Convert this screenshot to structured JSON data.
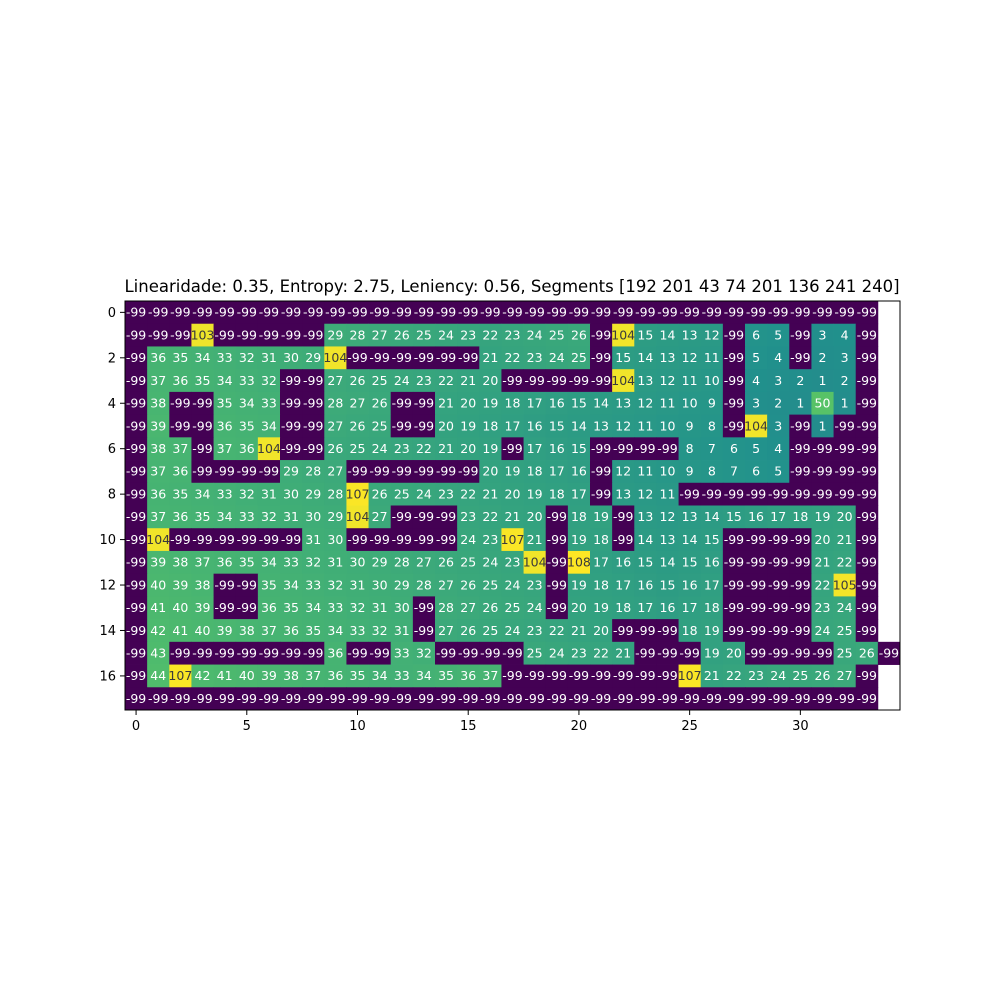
{
  "chart_data": {
    "type": "heatmap",
    "title": "Linearidade: 0.35, Entropy: 2.75, Leniency: 0.56, Segments [192 201  43  74 201 136 241 240]",
    "xlabel": "",
    "ylabel": "",
    "x_ticks": [
      "0",
      "5",
      "10",
      "15",
      "20",
      "25",
      "30"
    ],
    "y_ticks": [
      "0",
      "2",
      "4",
      "6",
      "8",
      "10",
      "12",
      "14",
      "16"
    ],
    "vmin": -99,
    "vmax": 108,
    "colormap": "viridis",
    "grid": false,
    "rows": [
      [
        -99,
        -99,
        -99,
        -99,
        -99,
        -99,
        -99,
        -99,
        -99,
        -99,
        -99,
        -99,
        -99,
        -99,
        -99,
        -99,
        -99,
        -99,
        -99,
        -99,
        -99,
        -99,
        -99,
        -99,
        -99,
        -99,
        -99,
        -99,
        -99,
        -99,
        -99,
        -99,
        -99,
        -99
      ],
      [
        -99,
        -99,
        -99,
        103,
        -99,
        -99,
        -99,
        -99,
        -99,
        29,
        28,
        27,
        26,
        25,
        24,
        23,
        22,
        23,
        24,
        25,
        26,
        -99,
        104,
        15,
        14,
        13,
        12,
        -99,
        6,
        5,
        -99,
        3,
        4,
        -99
      ],
      [
        -99,
        36,
        35,
        34,
        33,
        32,
        31,
        30,
        29,
        104,
        -99,
        -99,
        -99,
        -99,
        -99,
        -99,
        21,
        22,
        23,
        24,
        25,
        -99,
        15,
        14,
        13,
        12,
        11,
        -99,
        5,
        4,
        -99,
        2,
        3,
        -99
      ],
      [
        -99,
        37,
        36,
        35,
        34,
        33,
        32,
        -99,
        -99,
        27,
        26,
        25,
        24,
        23,
        22,
        21,
        20,
        -99,
        -99,
        -99,
        -99,
        -99,
        104,
        13,
        12,
        11,
        10,
        -99,
        4,
        3,
        2,
        1,
        2,
        -99
      ],
      [
        -99,
        38,
        -99,
        -99,
        35,
        34,
        33,
        -99,
        -99,
        28,
        27,
        26,
        -99,
        -99,
        21,
        20,
        19,
        18,
        17,
        16,
        15,
        14,
        13,
        12,
        11,
        10,
        9,
        -99,
        3,
        2,
        1,
        50,
        1,
        -99
      ],
      [
        -99,
        39,
        -99,
        -99,
        36,
        35,
        34,
        -99,
        -99,
        27,
        26,
        25,
        -99,
        -99,
        20,
        19,
        18,
        17,
        16,
        15,
        14,
        13,
        12,
        11,
        10,
        9,
        8,
        -99,
        104,
        3,
        -99,
        1,
        -99,
        -99
      ],
      [
        -99,
        38,
        37,
        -99,
        37,
        36,
        104,
        -99,
        -99,
        26,
        25,
        24,
        23,
        22,
        21,
        20,
        19,
        -99,
        17,
        16,
        15,
        -99,
        -99,
        -99,
        -99,
        8,
        7,
        6,
        5,
        4,
        -99,
        -99,
        -99,
        -99
      ],
      [
        -99,
        37,
        36,
        -99,
        -99,
        -99,
        -99,
        29,
        28,
        27,
        -99,
        -99,
        -99,
        -99,
        -99,
        -99,
        20,
        19,
        18,
        17,
        16,
        -99,
        12,
        11,
        10,
        9,
        8,
        7,
        6,
        5,
        -99,
        -99,
        -99,
        -99
      ],
      [
        -99,
        36,
        35,
        34,
        33,
        32,
        31,
        30,
        29,
        28,
        107,
        26,
        25,
        24,
        23,
        22,
        21,
        20,
        19,
        18,
        17,
        -99,
        13,
        12,
        11,
        -99,
        -99,
        -99,
        -99,
        -99,
        -99,
        -99,
        -99,
        -99
      ],
      [
        -99,
        37,
        36,
        35,
        34,
        33,
        32,
        31,
        30,
        29,
        104,
        27,
        -99,
        -99,
        -99,
        23,
        22,
        21,
        20,
        -99,
        18,
        19,
        -99,
        13,
        12,
        13,
        14,
        15,
        16,
        17,
        18,
        19,
        20,
        -99
      ],
      [
        -99,
        104,
        -99,
        -99,
        -99,
        -99,
        -99,
        -99,
        31,
        30,
        -99,
        -99,
        -99,
        -99,
        -99,
        24,
        23,
        107,
        21,
        -99,
        19,
        18,
        -99,
        14,
        13,
        14,
        15,
        -99,
        -99,
        -99,
        -99,
        20,
        21,
        -99
      ],
      [
        -99,
        39,
        38,
        37,
        36,
        35,
        34,
        33,
        32,
        31,
        30,
        29,
        28,
        27,
        26,
        25,
        24,
        23,
        104,
        -99,
        108,
        17,
        16,
        15,
        14,
        15,
        16,
        -99,
        -99,
        -99,
        -99,
        21,
        22,
        -99
      ],
      [
        -99,
        40,
        39,
        38,
        -99,
        -99,
        35,
        34,
        33,
        32,
        31,
        30,
        29,
        28,
        27,
        26,
        25,
        24,
        23,
        -99,
        19,
        18,
        17,
        16,
        15,
        16,
        17,
        -99,
        -99,
        -99,
        -99,
        22,
        105,
        -99
      ],
      [
        -99,
        41,
        40,
        39,
        -99,
        -99,
        36,
        35,
        34,
        33,
        32,
        31,
        30,
        -99,
        28,
        27,
        26,
        25,
        24,
        -99,
        20,
        19,
        18,
        17,
        16,
        17,
        18,
        -99,
        -99,
        -99,
        -99,
        23,
        24,
        -99
      ],
      [
        -99,
        42,
        41,
        40,
        39,
        38,
        37,
        36,
        35,
        34,
        33,
        32,
        31,
        -99,
        27,
        26,
        25,
        24,
        23,
        22,
        21,
        20,
        -99,
        -99,
        -99,
        18,
        19,
        -99,
        -99,
        -99,
        -99,
        24,
        25,
        -99
      ],
      [
        -99,
        43,
        -99,
        -99,
        -99,
        -99,
        -99,
        -99,
        -99,
        36,
        -99,
        -99,
        33,
        32,
        -99,
        -99,
        -99,
        -99,
        25,
        24,
        23,
        22,
        21,
        -99,
        -99,
        -99,
        19,
        20,
        -99,
        -99,
        -99,
        -99,
        25,
        26,
        -99
      ],
      [
        -99,
        44,
        107,
        42,
        41,
        40,
        39,
        38,
        37,
        36,
        35,
        34,
        33,
        34,
        35,
        36,
        37,
        -99,
        -99,
        -99,
        -99,
        -99,
        -99,
        -99,
        -99,
        107,
        21,
        22,
        23,
        24,
        25,
        26,
        27,
        -99
      ],
      [
        -99,
        -99,
        -99,
        -99,
        -99,
        -99,
        -99,
        -99,
        -99,
        -99,
        -99,
        -99,
        -99,
        -99,
        -99,
        -99,
        -99,
        -99,
        -99,
        -99,
        -99,
        -99,
        -99,
        -99,
        -99,
        -99,
        -99,
        -99,
        -99,
        -99,
        -99,
        -99,
        -99,
        -99
      ]
    ]
  }
}
